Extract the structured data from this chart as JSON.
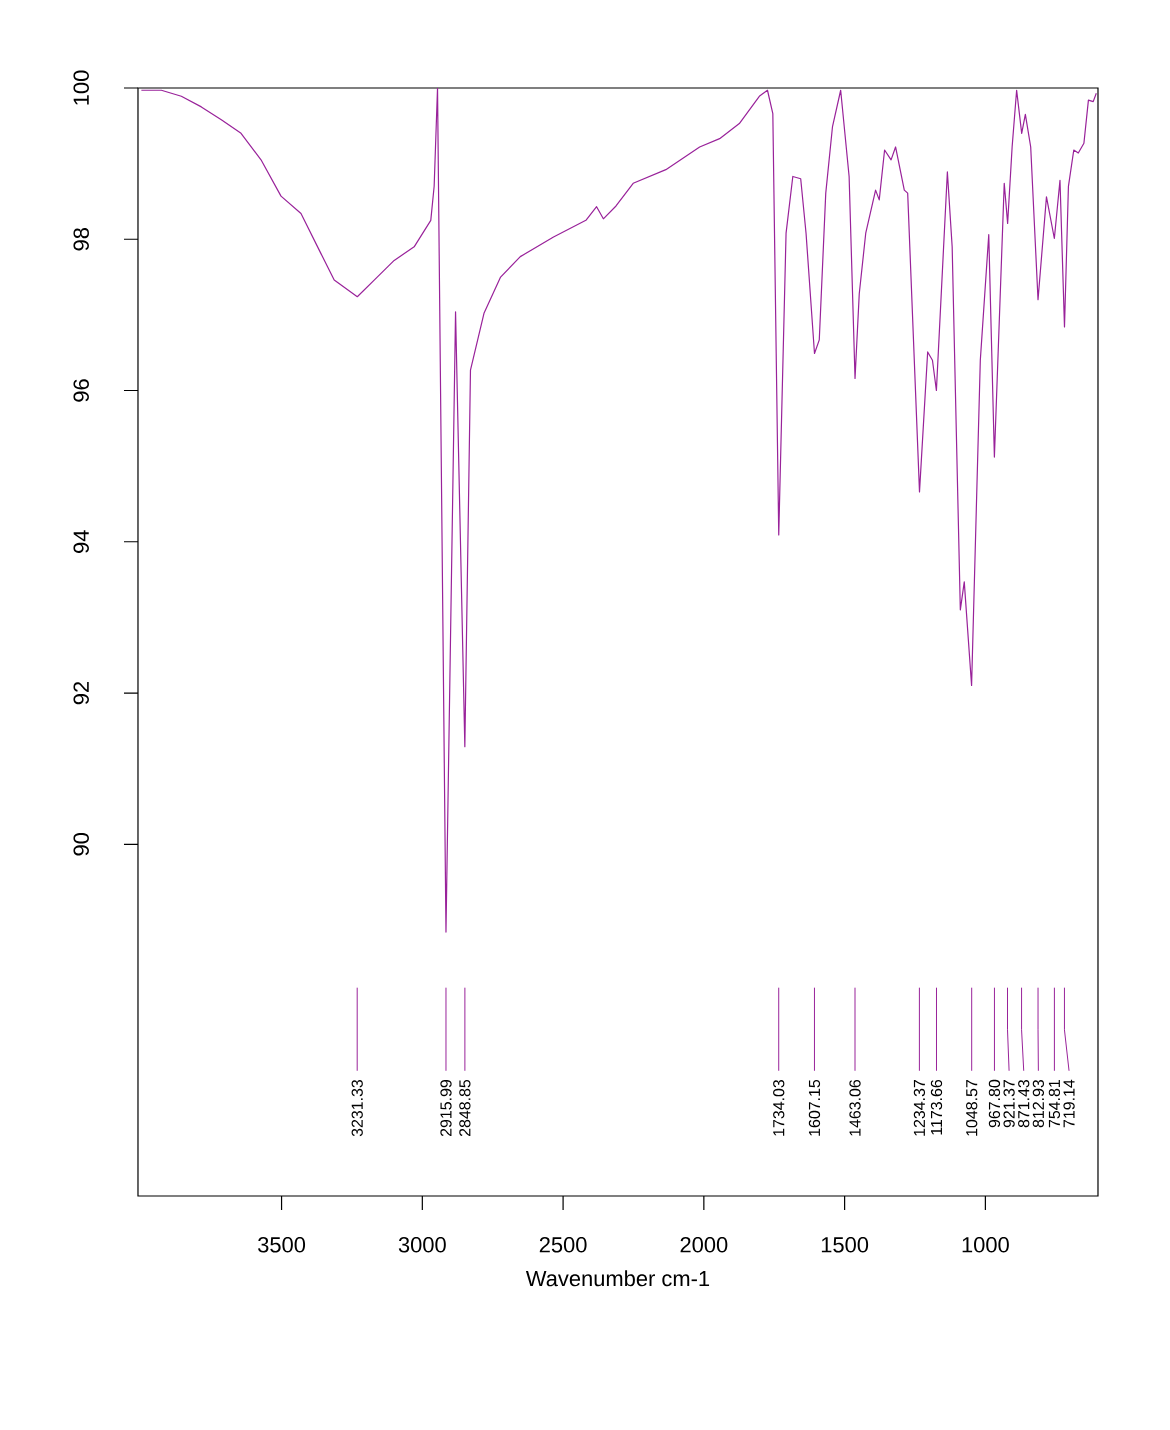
{
  "chart_data": {
    "type": "line",
    "xlabel": "Wavenumber cm-1",
    "xlim": [
      4010,
      600
    ],
    "ylim": [
      85.35,
      100
    ],
    "xticks": [
      3500,
      3000,
      2500,
      2000,
      1500,
      1000
    ],
    "yticks": [
      90,
      92,
      94,
      96,
      98,
      100
    ],
    "series": [
      {
        "color": "#99229a",
        "x": [
          3998,
          3927,
          3856,
          3785,
          3714,
          3644,
          3573,
          3502,
          3431,
          3360,
          3313,
          3231,
          3171,
          3100,
          3029,
          2970,
          2958,
          2946,
          2916,
          2882,
          2849,
          2829,
          2781,
          2722,
          2652,
          2534,
          2419,
          2381,
          2357,
          2312,
          2251,
          2135,
          2015,
          1944,
          1874,
          1803,
          1774,
          1755,
          1734,
          1708,
          1684,
          1656,
          1637,
          1607,
          1590,
          1567,
          1543,
          1514,
          1484,
          1463,
          1448,
          1425,
          1390,
          1377,
          1358,
          1335,
          1319,
          1288,
          1276,
          1234,
          1205,
          1188,
          1174,
          1135,
          1118,
          1089,
          1075,
          1049,
          1018,
          988,
          968,
          933,
          921,
          905,
          889,
          871,
          858,
          839,
          813,
          783,
          755,
          735,
          719,
          705,
          686,
          670,
          650,
          634,
          617,
          606
        ],
        "values": [
          99.97,
          99.97,
          99.89,
          99.75,
          99.58,
          99.4,
          99.05,
          98.57,
          98.34,
          97.81,
          97.46,
          97.24,
          97.46,
          97.72,
          97.9,
          98.25,
          98.7,
          100,
          88.84,
          97.04,
          91.29,
          96.27,
          97.02,
          97.5,
          97.77,
          98.03,
          98.25,
          98.43,
          98.27,
          98.44,
          98.74,
          98.92,
          99.22,
          99.33,
          99.53,
          99.89,
          99.97,
          99.66,
          94.09,
          98.08,
          98.83,
          98.8,
          98.08,
          96.49,
          96.67,
          98.61,
          99.49,
          99.97,
          98.83,
          96.16,
          97.28,
          98.08,
          98.65,
          98.52,
          99.18,
          99.05,
          99.22,
          98.65,
          98.61,
          94.66,
          96.51,
          96.4,
          96.0,
          98.89,
          97.9,
          93.1,
          93.47,
          92.1,
          96.4,
          98.06,
          95.12,
          98.74,
          98.21,
          99.22,
          99.97,
          99.4,
          99.65,
          99.22,
          97.2,
          98.56,
          98.01,
          98.78,
          96.84,
          98.7,
          99.18,
          99.14,
          99.27,
          99.84,
          99.82,
          99.93
        ]
      }
    ],
    "annotations": [
      {
        "text": "3231.33",
        "x": 3231.33
      },
      {
        "text": "2915.99",
        "x": 2915.99
      },
      {
        "text": "2848.85",
        "x": 2848.85
      },
      {
        "text": "1734.03",
        "x": 1734.03
      },
      {
        "text": "1607.15",
        "x": 1607.15
      },
      {
        "text": "1463.06",
        "x": 1463.06
      },
      {
        "text": "1234.37",
        "x": 1234.37
      },
      {
        "text": "1173.66",
        "x": 1173.66
      },
      {
        "text": "1048.57",
        "x": 1048.57
      },
      {
        "text": "967.80",
        "x": 967.8
      },
      {
        "text": "921.37",
        "x": 921.37
      },
      {
        "text": "871.43",
        "x": 871.43
      },
      {
        "text": "812.93",
        "x": 812.93
      },
      {
        "text": "754.81",
        "x": 754.81
      },
      {
        "text": "719.14",
        "x": 719.14
      }
    ]
  }
}
